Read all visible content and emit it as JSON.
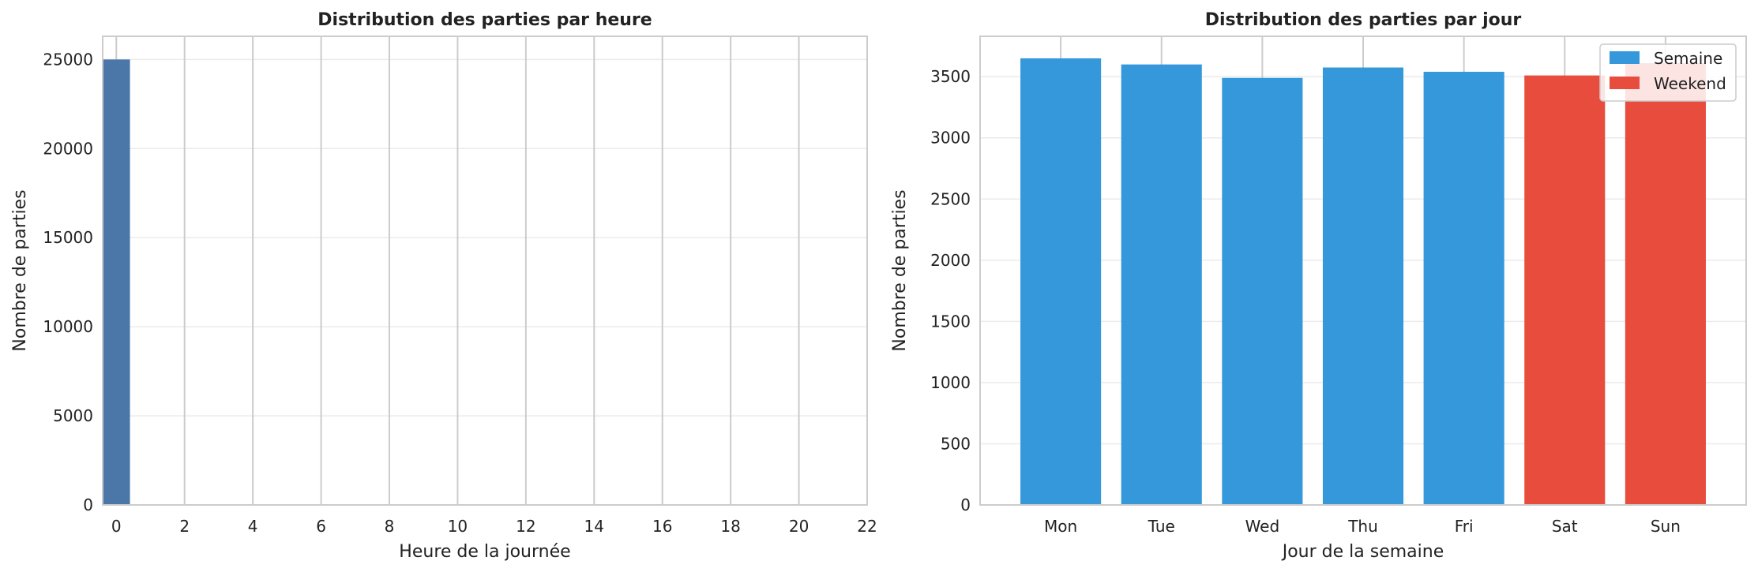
{
  "chart_data": [
    {
      "type": "bar",
      "title": "Distribution des parties par heure",
      "xlabel": "Heure de la journée",
      "ylabel": "Nombre de parties",
      "x": [
        0
      ],
      "values": [
        25000
      ],
      "xticks": [
        "0",
        "2",
        "4",
        "6",
        "8",
        "10",
        "12",
        "14",
        "16",
        "18",
        "20",
        "22"
      ],
      "yticks": [
        "0",
        "5000",
        "10000",
        "15000",
        "20000",
        "25000"
      ],
      "xlim": [
        -0.4,
        22
      ],
      "ylim": [
        0,
        26300
      ],
      "bar_color": "#4a76a8",
      "grid": true
    },
    {
      "type": "bar",
      "title": "Distribution des parties par jour",
      "xlabel": "Jour de la semaine",
      "ylabel": "Nombre de parties",
      "categories": [
        "Mon",
        "Tue",
        "Wed",
        "Thu",
        "Fri",
        "Sat",
        "Sun"
      ],
      "values": [
        3650,
        3600,
        3490,
        3575,
        3540,
        3510,
        3610
      ],
      "groups": [
        "Semaine",
        "Semaine",
        "Semaine",
        "Semaine",
        "Semaine",
        "Weekend",
        "Weekend"
      ],
      "yticks": [
        "0",
        "500",
        "1000",
        "1500",
        "2000",
        "2500",
        "3000",
        "3500"
      ],
      "ylim": [
        0,
        3830
      ],
      "legend": {
        "placement": "top-right",
        "entries": [
          {
            "label": "Semaine",
            "color": "#3498db"
          },
          {
            "label": "Weekend",
            "color": "#e74c3c"
          }
        ]
      },
      "grid": true
    }
  ]
}
